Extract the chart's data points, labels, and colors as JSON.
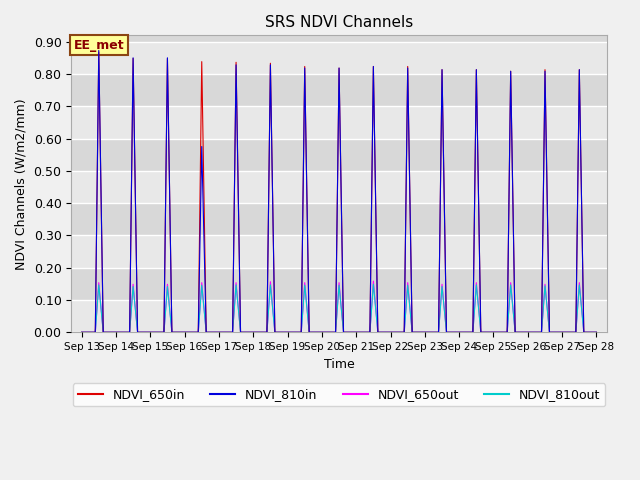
{
  "title": "SRS NDVI Channels",
  "ylabel": "NDVI Channels (W/m2/mm)",
  "xlabel": "Time",
  "ylim": [
    0.0,
    0.92
  ],
  "yticks": [
    0.0,
    0.1,
    0.2,
    0.3,
    0.4,
    0.5,
    0.6,
    0.7,
    0.8,
    0.9
  ],
  "annotation_text": "EE_met",
  "legend": [
    "NDVI_650in",
    "NDVI_810in",
    "NDVI_650out",
    "NDVI_810out"
  ],
  "colors": {
    "NDVI_650in": "#dd0000",
    "NDVI_810in": "#0000dd",
    "NDVI_650out": "#ff00ff",
    "NDVI_810out": "#00cccc"
  },
  "day_peaks": {
    "650in": [
      0.875,
      0.855,
      0.855,
      0.845,
      0.843,
      0.84,
      0.83,
      0.825,
      0.83,
      0.83,
      0.82,
      0.82,
      0.815,
      0.82,
      0.82
    ],
    "810in": [
      0.88,
      0.857,
      0.857,
      0.58,
      0.835,
      0.835,
      0.825,
      0.825,
      0.83,
      0.825,
      0.82,
      0.82,
      0.815,
      0.815,
      0.82
    ],
    "650out": [
      0.155,
      0.15,
      0.15,
      0.155,
      0.155,
      0.158,
      0.155,
      0.155,
      0.16,
      0.155,
      0.15,
      0.155,
      0.155,
      0.15,
      0.155
    ],
    "810out": [
      0.148,
      0.143,
      0.143,
      0.147,
      0.148,
      0.148,
      0.147,
      0.147,
      0.15,
      0.147,
      0.143,
      0.148,
      0.148,
      0.145,
      0.148
    ]
  },
  "days": [
    "Sep 13",
    "Sep 14",
    "Sep 15",
    "Sep 16",
    "Sep 17",
    "Sep 18",
    "Sep 19",
    "Sep 20",
    "Sep 21",
    "Sep 22",
    "Sep 23",
    "Sep 24",
    "Sep 25",
    "Sep 26",
    "Sep 27",
    "Sep 28"
  ],
  "num_days": 15,
  "band_colors": [
    "#e8e8e8",
    "#d8d8d8"
  ]
}
